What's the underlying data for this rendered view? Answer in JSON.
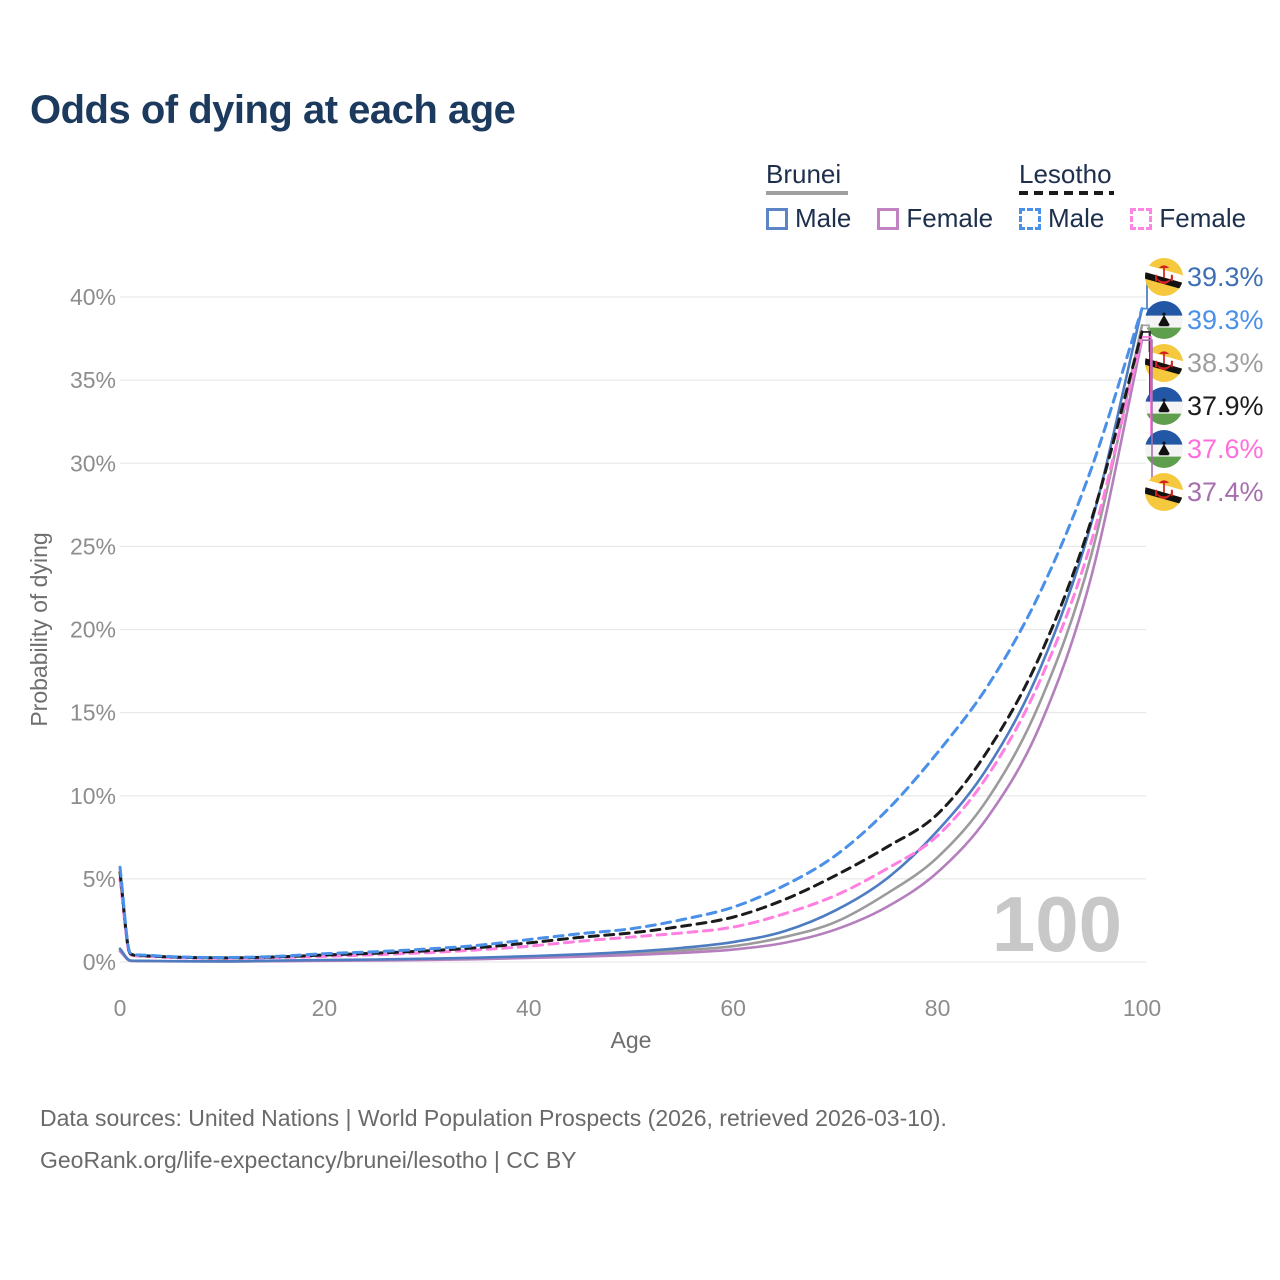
{
  "title": "Odds of dying at each age",
  "legend": {
    "brunei": {
      "name": "Brunei",
      "underline_color": "#a0a0a0",
      "underline_style": "solid",
      "male": {
        "label": "Male",
        "color": "#5b85c6",
        "dashed": false
      },
      "female": {
        "label": "Female",
        "color": "#c183c4",
        "dashed": false
      }
    },
    "lesotho": {
      "name": "Lesotho",
      "underline_color": "#1b1b1b",
      "underline_style": "dashed",
      "male": {
        "label": "Male",
        "color": "#4a90e8",
        "dashed": true
      },
      "female": {
        "label": "Female",
        "color": "#ff85e5",
        "dashed": true
      }
    }
  },
  "end_labels": [
    {
      "flag": "brunei",
      "value": "39.3%",
      "color": "#3f6fb5",
      "series": "brunei_male"
    },
    {
      "flag": "lesotho",
      "value": "39.3%",
      "color": "#4a90e8",
      "series": "lesotho_male"
    },
    {
      "flag": "brunei",
      "value": "38.3%",
      "color": "#9e9e9e",
      "series": "brunei_total"
    },
    {
      "flag": "lesotho",
      "value": "37.9%",
      "color": "#1c1c1c",
      "series": "lesotho_total"
    },
    {
      "flag": "lesotho",
      "value": "37.6%",
      "color": "#ff6edd",
      "series": "lesotho_female"
    },
    {
      "flag": "brunei",
      "value": "37.4%",
      "color": "#a76fae",
      "series": "brunei_female"
    }
  ],
  "watermark": "100",
  "footer": {
    "line1": "Data sources: United Nations | World Population Prospects (2026, retrieved 2026-03-10).",
    "line2": "GeoRank.org/life-expectancy/brunei/lesotho | CC BY"
  },
  "chart_data": {
    "type": "line",
    "title": "Odds of dying at each age",
    "xlabel": "Age",
    "ylabel": "Probability of dying",
    "xlim": [
      0,
      100
    ],
    "ylim": [
      0,
      40
    ],
    "x_ticks": [
      0,
      20,
      40,
      60,
      80,
      100
    ],
    "y_ticks": [
      0,
      5,
      10,
      15,
      20,
      25,
      30,
      35,
      40
    ],
    "y_tick_suffix": "%",
    "grid": "horizontal",
    "legend_position": "top-right",
    "ages": [
      0,
      1,
      2,
      5,
      10,
      15,
      20,
      25,
      30,
      35,
      40,
      45,
      50,
      55,
      60,
      65,
      70,
      75,
      80,
      85,
      90,
      95,
      100
    ],
    "series": [
      {
        "id": "brunei_total",
        "name": "Brunei (both sexes)",
        "country": "Brunei",
        "color": "#9b9b9b",
        "dashed": false,
        "values": [
          0.72,
          0.08,
          0.06,
          0.045,
          0.035,
          0.065,
          0.095,
          0.12,
          0.16,
          0.21,
          0.3,
          0.39,
          0.52,
          0.7,
          0.95,
          1.5,
          2.4,
          4.1,
          6.3,
          9.9,
          15.6,
          24.4,
          38.3
        ]
      },
      {
        "id": "brunei_female",
        "name": "Brunei Female",
        "country": "Brunei",
        "color": "#b57fbe",
        "dashed": false,
        "values": [
          0.65,
          0.07,
          0.05,
          0.04,
          0.03,
          0.05,
          0.07,
          0.09,
          0.12,
          0.17,
          0.24,
          0.32,
          0.42,
          0.55,
          0.75,
          1.15,
          1.95,
          3.3,
          5.4,
          8.8,
          14.2,
          23.1,
          37.4
        ]
      },
      {
        "id": "brunei_male",
        "name": "Brunei Male",
        "country": "Brunei",
        "color": "#4d7cc1",
        "dashed": false,
        "values": [
          0.8,
          0.09,
          0.07,
          0.05,
          0.04,
          0.08,
          0.12,
          0.15,
          0.2,
          0.26,
          0.35,
          0.46,
          0.62,
          0.85,
          1.2,
          1.85,
          3.1,
          5.0,
          7.9,
          11.8,
          17.6,
          26.3,
          39.3
        ]
      },
      {
        "id": "lesotho_female",
        "name": "Lesotho Female",
        "country": "Lesotho",
        "color": "#ff80e0",
        "dashed": true,
        "values": [
          5.0,
          0.45,
          0.35,
          0.27,
          0.22,
          0.26,
          0.34,
          0.44,
          0.56,
          0.73,
          0.95,
          1.25,
          1.5,
          1.75,
          2.1,
          2.9,
          4.0,
          5.6,
          7.6,
          11.3,
          16.9,
          25.2,
          37.6
        ]
      },
      {
        "id": "lesotho_total",
        "name": "Lesotho (both sexes)",
        "country": "Lesotho",
        "color": "#1b1b1b",
        "dashed": true,
        "values": [
          5.4,
          0.5,
          0.38,
          0.3,
          0.25,
          0.3,
          0.42,
          0.53,
          0.67,
          0.86,
          1.15,
          1.48,
          1.75,
          2.15,
          2.7,
          3.75,
          5.2,
          6.9,
          8.9,
          12.8,
          18.4,
          26.5,
          37.9
        ]
      },
      {
        "id": "lesotho_male",
        "name": "Lesotho Male",
        "country": "Lesotho",
        "color": "#4a90e8",
        "dashed": true,
        "values": [
          5.7,
          0.55,
          0.42,
          0.32,
          0.27,
          0.33,
          0.5,
          0.62,
          0.78,
          1.0,
          1.35,
          1.7,
          2.0,
          2.55,
          3.3,
          4.6,
          6.4,
          9.1,
          12.6,
          16.7,
          22.2,
          29.6,
          39.3
        ]
      }
    ]
  }
}
